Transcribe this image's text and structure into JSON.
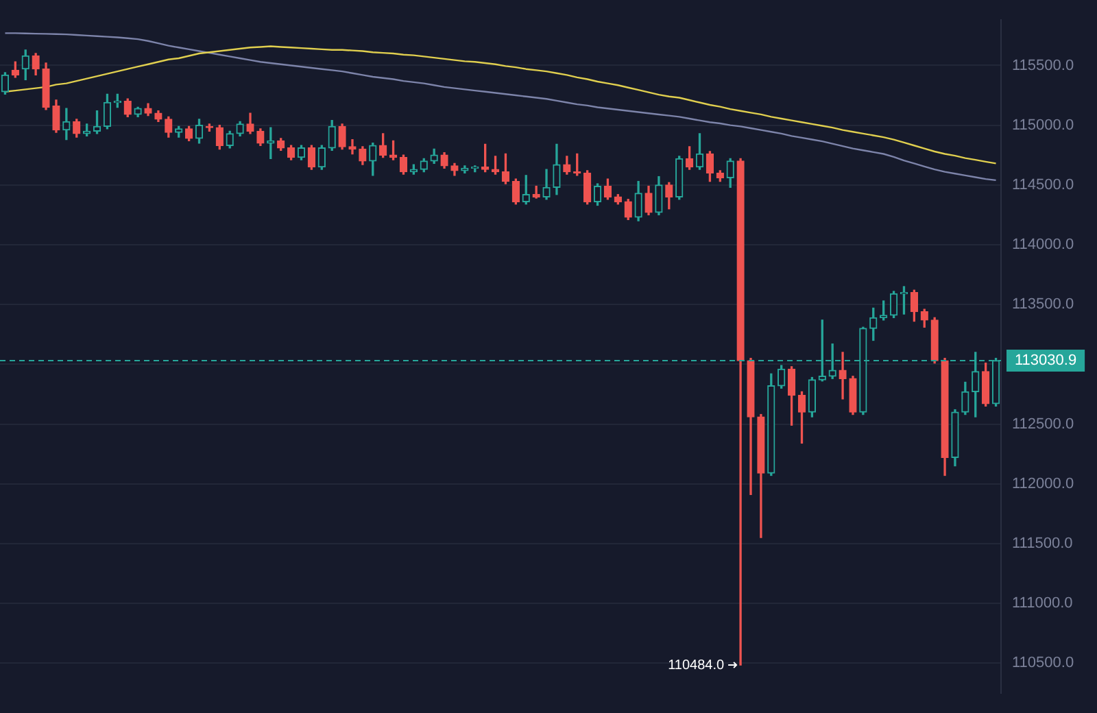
{
  "chart_data": {
    "type": "candlestick",
    "categories": [
      null,
      null,
      null,
      null,
      null,
      null,
      null,
      null,
      null,
      null,
      null,
      null,
      null,
      null,
      null,
      null,
      null,
      null,
      null,
      null,
      null,
      null,
      null,
      null,
      null,
      null,
      null,
      null,
      null,
      null,
      null,
      null,
      null,
      null,
      null,
      null,
      null,
      null,
      null,
      null,
      null,
      null,
      null,
      null,
      null,
      null,
      null,
      null,
      null,
      null,
      null,
      null,
      null,
      null,
      null,
      null,
      null,
      null,
      null,
      null,
      null,
      null,
      null,
      null,
      null,
      null,
      null,
      null,
      null,
      null,
      null,
      null,
      null,
      null,
      null,
      null,
      null,
      null,
      null,
      null,
      null,
      null,
      null,
      null,
      null,
      null,
      null,
      null,
      null,
      null,
      null,
      null,
      null,
      null,
      null,
      null,
      null,
      null
    ],
    "series": [
      {
        "type": "candlestick",
        "ohlc": [
          [
            115280,
            115440,
            115260,
            115420
          ],
          [
            115460,
            115530,
            115400,
            115420
          ],
          [
            115470,
            115630,
            115380,
            115580
          ],
          [
            115580,
            115600,
            115420,
            115470
          ],
          [
            115470,
            115520,
            115130,
            115150
          ],
          [
            115160,
            115210,
            114940,
            114960
          ],
          [
            114960,
            115140,
            114880,
            115030
          ],
          [
            115030,
            115050,
            114900,
            114930
          ],
          [
            114930,
            115010,
            114910,
            114950
          ],
          [
            114950,
            115120,
            114930,
            114990
          ],
          [
            114990,
            115260,
            114970,
            115190
          ],
          [
            115190,
            115260,
            115150,
            115200
          ],
          [
            115200,
            115220,
            115070,
            115090
          ],
          [
            115090,
            115150,
            115070,
            115140
          ],
          [
            115140,
            115180,
            115080,
            115100
          ],
          [
            115100,
            115120,
            115030,
            115050
          ],
          [
            115050,
            115070,
            114900,
            114940
          ],
          [
            114940,
            114990,
            114900,
            114970
          ],
          [
            114970,
            114990,
            114870,
            114890
          ],
          [
            114890,
            115050,
            114850,
            115000
          ],
          [
            114990,
            115010,
            114950,
            114980
          ],
          [
            114980,
            115000,
            114800,
            114830
          ],
          [
            114830,
            114950,
            114810,
            114930
          ],
          [
            114930,
            115030,
            114910,
            115010
          ],
          [
            115010,
            115100,
            114930,
            114950
          ],
          [
            114950,
            114970,
            114830,
            114850
          ],
          [
            114850,
            114980,
            114720,
            114870
          ],
          [
            114870,
            114890,
            114790,
            114810
          ],
          [
            114810,
            114830,
            114710,
            114730
          ],
          [
            114730,
            114830,
            114710,
            114810
          ],
          [
            114810,
            114830,
            114630,
            114650
          ],
          [
            114650,
            114830,
            114630,
            114810
          ],
          [
            114810,
            115040,
            114790,
            114990
          ],
          [
            114990,
            115010,
            114800,
            114820
          ],
          [
            114820,
            114880,
            114760,
            114800
          ],
          [
            114800,
            114820,
            114670,
            114700
          ],
          [
            114700,
            114850,
            114580,
            114830
          ],
          [
            114830,
            114930,
            114730,
            114750
          ],
          [
            114750,
            114870,
            114710,
            114730
          ],
          [
            114730,
            114750,
            114590,
            114610
          ],
          [
            114610,
            114670,
            114590,
            114630
          ],
          [
            114630,
            114720,
            114610,
            114700
          ],
          [
            114700,
            114800,
            114680,
            114750
          ],
          [
            114750,
            114770,
            114640,
            114660
          ],
          [
            114660,
            114680,
            114580,
            114620
          ],
          [
            114620,
            114660,
            114600,
            114640
          ],
          [
            114640,
            114660,
            114610,
            114650
          ],
          [
            114650,
            114840,
            114610,
            114630
          ],
          [
            114630,
            114740,
            114590,
            114610
          ],
          [
            114610,
            114760,
            114510,
            114530
          ],
          [
            114530,
            114550,
            114340,
            114360
          ],
          [
            114360,
            114580,
            114340,
            114420
          ],
          [
            114420,
            114490,
            114390,
            114400
          ],
          [
            114400,
            114630,
            114380,
            114480
          ],
          [
            114480,
            114840,
            114420,
            114670
          ],
          [
            114670,
            114740,
            114590,
            114610
          ],
          [
            114610,
            114760,
            114580,
            114600
          ],
          [
            114600,
            114620,
            114340,
            114360
          ],
          [
            114360,
            114510,
            114330,
            114490
          ],
          [
            114490,
            114550,
            114380,
            114400
          ],
          [
            114400,
            114420,
            114340,
            114360
          ],
          [
            114360,
            114380,
            114210,
            114230
          ],
          [
            114230,
            114530,
            114200,
            114430
          ],
          [
            114430,
            114490,
            114250,
            114270
          ],
          [
            114270,
            114570,
            114250,
            114500
          ],
          [
            114500,
            114520,
            114300,
            114400
          ],
          [
            114400,
            114740,
            114380,
            114720
          ],
          [
            114720,
            114820,
            114630,
            114650
          ],
          [
            114650,
            114930,
            114630,
            114760
          ],
          [
            114760,
            114780,
            114530,
            114600
          ],
          [
            114600,
            114620,
            114530,
            114560
          ],
          [
            114560,
            114720,
            114480,
            114700
          ],
          [
            114700,
            114720,
            110484,
            113030
          ],
          [
            113030,
            113050,
            111910,
            112560
          ],
          [
            112560,
            112580,
            111550,
            112090
          ],
          [
            112090,
            112920,
            112070,
            112820
          ],
          [
            112820,
            112990,
            112800,
            112960
          ],
          [
            112960,
            112980,
            112490,
            112740
          ],
          [
            112740,
            112770,
            112340,
            112600
          ],
          [
            112600,
            112890,
            112560,
            112870
          ],
          [
            112870,
            113370,
            112860,
            112900
          ],
          [
            112900,
            113170,
            112880,
            112950
          ],
          [
            112950,
            113100,
            112710,
            112880
          ],
          [
            112880,
            112900,
            112580,
            112600
          ],
          [
            112600,
            113310,
            112580,
            113300
          ],
          [
            113300,
            113470,
            113200,
            113390
          ],
          [
            113390,
            113530,
            113370,
            113410
          ],
          [
            113410,
            113610,
            113390,
            113590
          ],
          [
            113590,
            113650,
            113420,
            113600
          ],
          [
            113600,
            113620,
            113360,
            113440
          ],
          [
            113440,
            113460,
            113310,
            113370
          ],
          [
            113370,
            113390,
            113010,
            113030
          ],
          [
            113030,
            113050,
            112070,
            112220
          ],
          [
            112220,
            112620,
            112150,
            112600
          ],
          [
            112600,
            112850,
            112580,
            112770
          ],
          [
            112770,
            113100,
            112560,
            112940
          ],
          [
            112940,
            113010,
            112650,
            112670
          ],
          [
            112670,
            113050,
            112650,
            113030.9
          ]
        ],
        "colors": [
          "#26a69a",
          "#ef5350",
          "#26a69a",
          "#ef5350",
          "#ef5350",
          "#ef5350",
          "#26a69a",
          "#ef5350",
          "#26a69a",
          "#26a69a",
          "#26a69a",
          "#26a69a",
          "#ef5350",
          "#26a69a",
          "#ef5350",
          "#ef5350",
          "#ef5350",
          "#26a69a",
          "#ef5350",
          "#26a69a",
          "#ef5350",
          "#ef5350",
          "#26a69a",
          "#26a69a",
          "#ef5350",
          "#ef5350",
          "#26a69a",
          "#ef5350",
          "#ef5350",
          "#26a69a",
          "#ef5350",
          "#26a69a",
          "#26a69a",
          "#ef5350",
          "#ef5350",
          "#ef5350",
          "#26a69a",
          "#ef5350",
          "#ef5350",
          "#ef5350",
          "#26a69a",
          "#26a69a",
          "#26a69a",
          "#ef5350",
          "#ef5350",
          "#26a69a",
          "#26a69a",
          "#ef5350",
          "#ef5350",
          "#ef5350",
          "#ef5350",
          "#26a69a",
          "#ef5350",
          "#26a69a",
          "#26a69a",
          "#ef5350",
          "#ef5350",
          "#ef5350",
          "#26a69a",
          "#ef5350",
          "#ef5350",
          "#ef5350",
          "#26a69a",
          "#ef5350",
          "#26a69a",
          "#ef5350",
          "#26a69a",
          "#ef5350",
          "#26a69a",
          "#ef5350",
          "#ef5350",
          "#26a69a",
          "#ef5350",
          "#ef5350",
          "#ef5350",
          "#26a69a",
          "#26a69a",
          "#ef5350",
          "#ef5350",
          "#26a69a",
          "#26a69a",
          "#26a69a",
          "#ef5350",
          "#ef5350",
          "#26a69a",
          "#26a69a",
          "#26a69a",
          "#26a69a",
          "#26a69a",
          "#ef5350",
          "#ef5350",
          "#ef5350",
          "#ef5350",
          "#26a69a",
          "#26a69a",
          "#26a69a",
          "#ef5350",
          "#26a69a"
        ]
      },
      {
        "type": "line",
        "color": "#e0cf4f",
        "values": [
          115280,
          115290,
          115300,
          115310,
          115320,
          115340,
          115350,
          115370,
          115390,
          115410,
          115430,
          115450,
          115470,
          115490,
          115510,
          115530,
          115550,
          115560,
          115580,
          115600,
          115610,
          115620,
          115630,
          115640,
          115650,
          115655,
          115660,
          115655,
          115650,
          115645,
          115640,
          115635,
          115630,
          115630,
          115625,
          115620,
          115610,
          115605,
          115600,
          115590,
          115585,
          115575,
          115565,
          115555,
          115545,
          115535,
          115530,
          115520,
          115510,
          115495,
          115485,
          115470,
          115460,
          115450,
          115435,
          115420,
          115400,
          115385,
          115365,
          115350,
          115335,
          115315,
          115295,
          115275,
          115255,
          115240,
          115230,
          115210,
          115190,
          115170,
          115155,
          115135,
          115120,
          115105,
          115090,
          115070,
          115055,
          115040,
          115025,
          115010,
          114995,
          114980,
          114960,
          114945,
          114930,
          114915,
          114900,
          114880,
          114855,
          114830,
          114805,
          114780,
          114760,
          114745,
          114725,
          114710,
          114695,
          114680
        ]
      },
      {
        "type": "line",
        "color": "#7d84aa",
        "values": [
          115770,
          115770,
          115768,
          115766,
          115764,
          115762,
          115760,
          115755,
          115750,
          115745,
          115740,
          115735,
          115728,
          115720,
          115705,
          115685,
          115665,
          115650,
          115635,
          115620,
          115605,
          115590,
          115575,
          115560,
          115545,
          115530,
          115520,
          115510,
          115500,
          115490,
          115480,
          115470,
          115460,
          115450,
          115435,
          115420,
          115405,
          115395,
          115385,
          115370,
          115360,
          115350,
          115335,
          115320,
          115310,
          115300,
          115290,
          115280,
          115270,
          115260,
          115250,
          115240,
          115230,
          115220,
          115205,
          115190,
          115175,
          115165,
          115150,
          115140,
          115130,
          115120,
          115110,
          115100,
          115090,
          115080,
          115070,
          115055,
          115040,
          115025,
          115015,
          115000,
          114990,
          114975,
          114960,
          114945,
          114930,
          114910,
          114895,
          114880,
          114865,
          114845,
          114825,
          114805,
          114790,
          114775,
          114760,
          114735,
          114705,
          114680,
          114655,
          114630,
          114610,
          114595,
          114580,
          114565,
          114550,
          114540
        ]
      }
    ],
    "ylim": [
      110250,
      115880
    ],
    "yticks": [
      {
        "value": 110500,
        "label": "110500.0"
      },
      {
        "value": 111000,
        "label": "111000.0"
      },
      {
        "value": 111500,
        "label": "111500.0"
      },
      {
        "value": 112000,
        "label": "112000.0"
      },
      {
        "value": 112500,
        "label": "112500.0"
      },
      {
        "value": 113000,
        "label": null
      },
      {
        "value": 113500,
        "label": "113500.0"
      },
      {
        "value": 114000,
        "label": "114000.0"
      },
      {
        "value": 114500,
        "label": "114500.0"
      },
      {
        "value": 115000,
        "label": "115000.0"
      },
      {
        "value": 115500,
        "label": "115500.0"
      }
    ],
    "ref_lines": [
      {
        "axis": "y",
        "value": 113030.9,
        "label": "113030.9",
        "color": "#26a69a",
        "line_style": "dashed"
      }
    ],
    "annotations": [
      "110484.0"
    ],
    "grid": "y",
    "tick_labels": "y"
  }
}
